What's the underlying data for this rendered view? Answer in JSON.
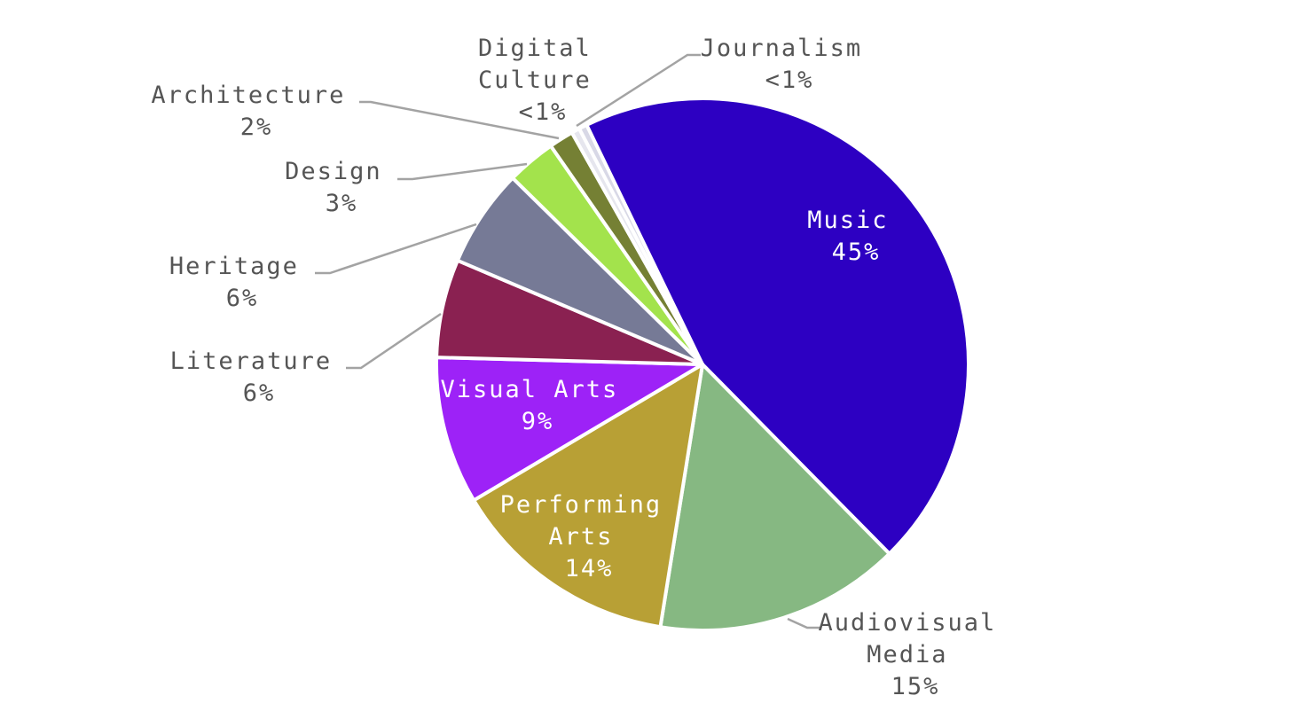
{
  "chart_data": {
    "type": "pie",
    "slices": [
      {
        "name": "Journalism",
        "value": 0.5,
        "pct_label": "<1%",
        "color": "#d8d8e6"
      },
      {
        "name": "Music",
        "value": 45,
        "pct_label": "45%",
        "color": "#2d00c2"
      },
      {
        "name": "Audiovisual Media",
        "value": 15,
        "pct_label": "15%",
        "color": "#86b882"
      },
      {
        "name": "Performing Arts",
        "value": 14,
        "pct_label": "14%",
        "color": "#b8a035"
      },
      {
        "name": "Visual Arts",
        "value": 9,
        "pct_label": "9%",
        "color": "#9d22f7"
      },
      {
        "name": "Literature",
        "value": 6,
        "pct_label": "6%",
        "color": "#8a2151"
      },
      {
        "name": "Heritage",
        "value": 6,
        "pct_label": "6%",
        "color": "#767a96"
      },
      {
        "name": "Design",
        "value": 3,
        "pct_label": "3%",
        "color": "#a3e34c"
      },
      {
        "name": "Architecture",
        "value": 1.5,
        "pct_label": "2%",
        "color": "#758034"
      },
      {
        "name": "Digital Culture",
        "value": 0.5,
        "pct_label": "<1%",
        "color": "#e6e6ee"
      }
    ],
    "labels": {
      "music": {
        "line1": "Music",
        "pct": "45%"
      },
      "audiovisual": {
        "line1": "Audiovisual",
        "line2": "Media",
        "pct": "15%"
      },
      "performing": {
        "line1": "Performing",
        "line2": "Arts",
        "pct": "14%"
      },
      "visual": {
        "line1": "Visual Arts",
        "pct": "9%"
      },
      "literature": {
        "line1": "Literature",
        "pct": "6%"
      },
      "heritage": {
        "line1": "Heritage",
        "pct": "6%"
      },
      "design": {
        "line1": "Design",
        "pct": "3%"
      },
      "architecture": {
        "line1": "Architecture",
        "pct": "2%"
      },
      "digital": {
        "line1": "Digital",
        "line2": "Culture",
        "pct": "<1%"
      },
      "journalism": {
        "line1": "Journalism",
        "pct": "<1%"
      }
    }
  }
}
